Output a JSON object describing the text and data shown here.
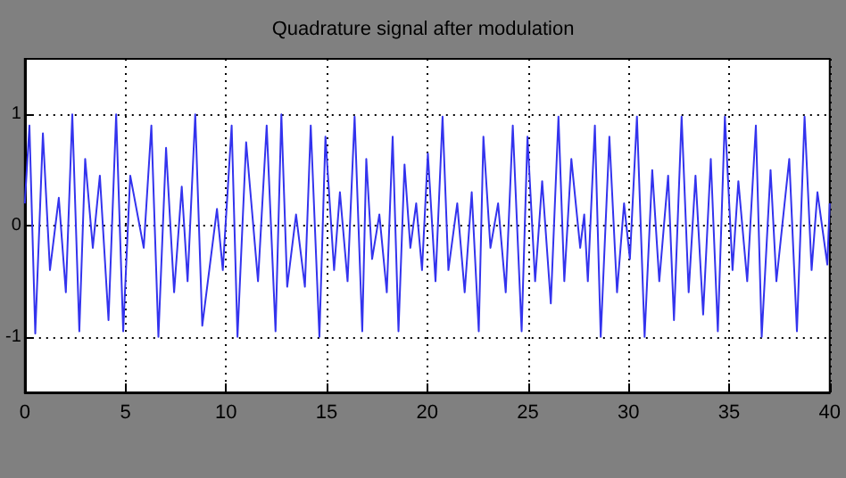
{
  "chart_data": {
    "type": "line",
    "title": "Quadrature signal after modulation",
    "x": [
      0,
      0.23,
      0.52,
      0.9,
      1.25,
      1.69,
      2.04,
      2.36,
      2.71,
      3.0,
      3.38,
      3.73,
      4.16,
      4.54,
      4.89,
      5.24,
      5.91,
      6.29,
      6.64,
      7.02,
      7.42,
      7.8,
      8.09,
      8.47,
      8.82,
      9.55,
      9.84,
      10.28,
      10.57,
      11.0,
      11.59,
      12.02,
      12.46,
      12.75,
      13.04,
      13.48,
      13.92,
      14.21,
      14.64,
      14.94,
      15.37,
      15.66,
      16.04,
      16.39,
      16.77,
      16.97,
      17.26,
      17.62,
      17.99,
      18.28,
      18.57,
      18.87,
      19.16,
      19.45,
      19.74,
      20.03,
      20.41,
      20.76,
      21.05,
      21.49,
      21.86,
      22.21,
      22.56,
      22.79,
      23.14,
      23.52,
      23.9,
      24.25,
      24.69,
      24.98,
      25.36,
      25.71,
      26.14,
      26.52,
      26.81,
      27.16,
      27.6,
      27.8,
      27.98,
      28.33,
      28.62,
      29.05,
      29.43,
      29.78,
      30.07,
      30.42,
      30.8,
      31.18,
      31.53,
      31.97,
      32.26,
      32.64,
      32.99,
      33.33,
      33.71,
      34.09,
      34.44,
      34.79,
      35.17,
      35.46,
      35.9,
      36.33,
      36.62,
      37.06,
      37.35,
      37.99,
      38.37,
      38.75,
      39.1,
      39.39,
      39.88,
      40
    ],
    "series": [
      {
        "color": "#3333ee",
        "values": [
          0.2,
          0.9,
          -0.97,
          0.83,
          -0.4,
          0.25,
          -0.6,
          1.0,
          -0.95,
          0.6,
          -0.2,
          0.45,
          -0.85,
          1.0,
          -0.95,
          0.45,
          -0.2,
          0.9,
          -1.0,
          0.7,
          -0.6,
          0.35,
          -0.5,
          1.0,
          -0.9,
          0.15,
          -0.4,
          0.9,
          -1.0,
          0.75,
          -0.5,
          0.9,
          -0.95,
          1.0,
          -0.55,
          0.1,
          -0.55,
          0.9,
          -1.0,
          0.8,
          -0.4,
          0.3,
          -0.5,
          0.98,
          -0.95,
          0.6,
          -0.3,
          0.1,
          -0.6,
          0.8,
          -0.95,
          0.55,
          -0.2,
          0.2,
          -0.4,
          0.65,
          -0.5,
          0.98,
          -0.4,
          0.2,
          -0.6,
          0.3,
          -0.95,
          0.8,
          -0.2,
          0.2,
          -0.6,
          0.9,
          -0.95,
          0.8,
          -0.5,
          0.4,
          -0.7,
          0.98,
          -0.5,
          0.6,
          -0.2,
          0.1,
          -0.5,
          0.9,
          -1.0,
          0.8,
          -0.6,
          0.2,
          -0.3,
          0.98,
          -1.0,
          0.5,
          -0.5,
          0.45,
          -0.85,
          0.98,
          -0.6,
          0.45,
          -0.8,
          0.6,
          -0.95,
          0.98,
          -0.4,
          0.4,
          -0.5,
          0.9,
          -1.0,
          0.5,
          -0.5,
          0.6,
          -0.95,
          0.98,
          -0.4,
          0.3,
          -0.35,
          0.2
        ]
      }
    ],
    "xlim": [
      0,
      40
    ],
    "xticks": [
      0,
      5,
      10,
      15,
      20,
      25,
      30,
      35,
      40
    ],
    "ylim": [
      -1.5,
      1.5
    ],
    "yticks": [
      -1,
      0,
      1
    ],
    "grid": true,
    "line_style": "solid",
    "marker": "none"
  }
}
